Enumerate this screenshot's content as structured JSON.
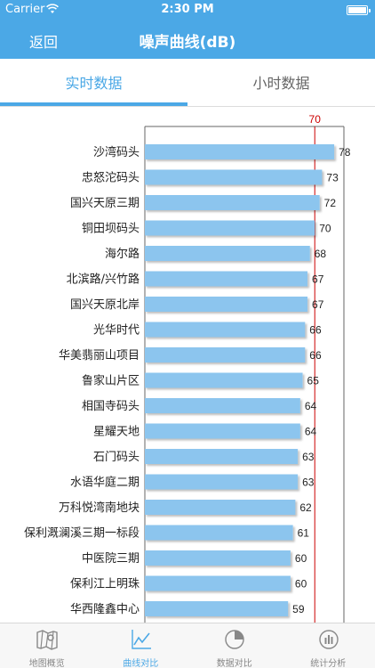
{
  "status_bar": {
    "carrier": "Carrier",
    "time": "2:30 PM"
  },
  "nav": {
    "back_label": "返回",
    "title": "噪声曲线(dB)"
  },
  "tabs": [
    {
      "label": "实时数据",
      "active": true
    },
    {
      "label": "小时数据",
      "active": false
    }
  ],
  "chart_data": {
    "type": "bar",
    "orientation": "horizontal",
    "threshold": 70,
    "threshold_label": "70",
    "threshold_color": "#cc0000",
    "bar_color": "#8cc5ee",
    "xlim": [
      0,
      82
    ],
    "categories": [
      "沙湾码头",
      "忠怒沱码头",
      "国兴天原三期",
      "铜田坝码头",
      "海尔路",
      "北滨路/兴竹路",
      "国兴天原北岸",
      "光华时代",
      "华美翡丽山项目",
      "鲁家山片区",
      "相国寺码头",
      "星耀天地",
      "石门码头",
      "水语华庭二期",
      "万科悦湾南地块",
      "保利溉澜溪三期一标段",
      "中医院三期",
      "保利江上明珠",
      "华西隆鑫中心"
    ],
    "values": [
      78,
      73,
      72,
      70,
      68,
      67,
      67,
      66,
      66,
      65,
      64,
      64,
      63,
      63,
      62,
      61,
      60,
      60,
      59
    ],
    "value_labels": [
      "78",
      "73",
      "72",
      "70",
      "68",
      "67",
      "67",
      "66",
      "66",
      "65",
      "64",
      "64",
      "63",
      "63",
      "62",
      "61",
      "60",
      "60",
      "59"
    ]
  },
  "tab_bar": [
    {
      "label": "地图概览",
      "icon": "map-icon",
      "active": false
    },
    {
      "label": "曲线对比",
      "icon": "line-chart-icon",
      "active": true
    },
    {
      "label": "数据对比",
      "icon": "pie-chart-icon",
      "active": false
    },
    {
      "label": "统计分析",
      "icon": "bar-stats-icon",
      "active": false
    }
  ],
  "colors": {
    "accent": "#4ba8e6",
    "inactive": "#888888"
  }
}
